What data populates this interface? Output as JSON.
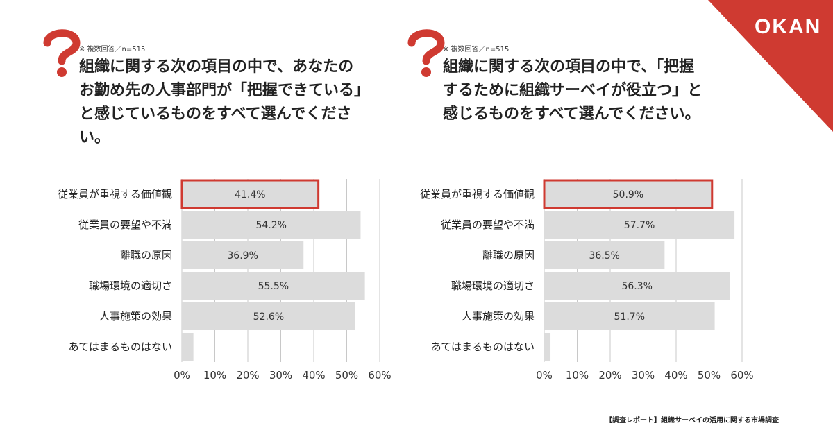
{
  "brand": {
    "logo_text": "OKAN",
    "accent_color": "#cf3a31"
  },
  "left_panel": {
    "note": "※ 複数回答／n=515",
    "question_lines": [
      "組織に関する次の項目の中で、あなたの",
      "お勤め先の人事部門が「把握できている」",
      "と感じているものをすべて選んでくださ",
      "い。"
    ]
  },
  "right_panel": {
    "note": "※ 複数回答／n=515",
    "question_lines": [
      "組織に関する次の項目の中で、「把握",
      "するために組織サーベイが役立つ」と",
      "感じるものをすべて選んでください。"
    ]
  },
  "footer": {
    "source": "【調査レポート】組織サーベイの活用に関する市場調査"
  },
  "chart_data": [
    {
      "type": "bar",
      "orientation": "horizontal",
      "categories": [
        "従業員が重視する価値観",
        "従業員の要望や不満",
        "離職の原因",
        "職場環境の適切さ",
        "人事施策の効果",
        "あてはまるものはない"
      ],
      "values": [
        41.4,
        54.2,
        36.9,
        55.5,
        52.6,
        3.5
      ],
      "value_labels": [
        "41.4%",
        "54.2%",
        "36.9%",
        "55.5%",
        "52.6%",
        ""
      ],
      "highlight_index": 0,
      "xlim": [
        0,
        60
      ],
      "xticks": [
        "0%",
        "10%",
        "20%",
        "30%",
        "40%",
        "50%",
        "60%"
      ],
      "grid": true
    },
    {
      "type": "bar",
      "orientation": "horizontal",
      "categories": [
        "従業員が重視する価値観",
        "従業員の要望や不満",
        "離職の原因",
        "職場環境の適切さ",
        "人事施策の効果",
        "あてはまるものはない"
      ],
      "values": [
        50.9,
        57.7,
        36.5,
        56.3,
        51.7,
        1.9
      ],
      "value_labels": [
        "50.9%",
        "57.7%",
        "36.5%",
        "56.3%",
        "51.7%",
        ""
      ],
      "highlight_index": 0,
      "xlim": [
        0,
        60
      ],
      "xticks": [
        "0%",
        "10%",
        "20%",
        "30%",
        "40%",
        "50%",
        "60%"
      ],
      "grid": true
    }
  ]
}
